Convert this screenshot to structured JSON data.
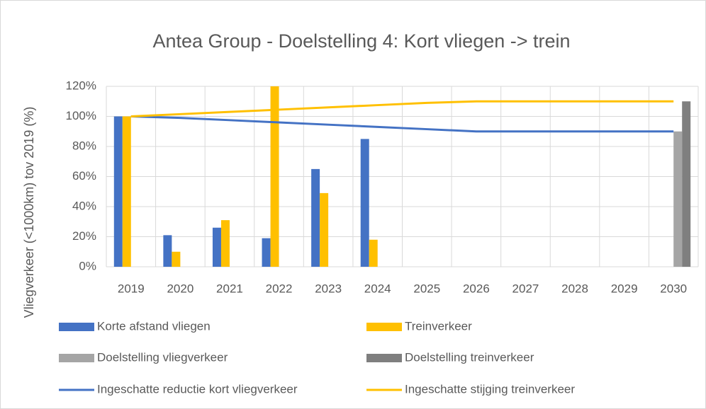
{
  "chart_data": {
    "type": "bar",
    "title": "Antea Group - Doelstelling 4: Kort vliegen -> trein",
    "y_label": "Vliegverkeer (<1000km) tov 2019 (%)",
    "categories": [
      "2019",
      "2020",
      "2021",
      "2022",
      "2023",
      "2024",
      "2025",
      "2026",
      "2027",
      "2028",
      "2029",
      "2030"
    ],
    "series": [
      {
        "name": "Korte afstand vliegen",
        "color": "#4472c4",
        "kind": "bar",
        "values": [
          100,
          21,
          26,
          19,
          65,
          85,
          null,
          null,
          null,
          null,
          null,
          null
        ]
      },
      {
        "name": "Treinverkeer",
        "color": "#ffc000",
        "kind": "bar",
        "values": [
          100,
          10,
          31,
          120,
          49,
          18,
          null,
          null,
          null,
          null,
          null,
          null
        ]
      },
      {
        "name": "Doelstelling vliegverkeer",
        "color": "#a5a5a5",
        "kind": "bar",
        "values": [
          null,
          null,
          null,
          null,
          null,
          null,
          null,
          null,
          null,
          null,
          null,
          90
        ]
      },
      {
        "name": "Doelstelling treinverkeer",
        "color": "#7f7f7f",
        "kind": "bar",
        "values": [
          null,
          null,
          null,
          null,
          null,
          null,
          null,
          null,
          null,
          null,
          null,
          110
        ]
      },
      {
        "name": "Ingeschatte reductie kort vliegverkeer",
        "color": "#4472c4",
        "kind": "line",
        "values": [
          100,
          99,
          97.5,
          96,
          94.5,
          93,
          91.5,
          90,
          90,
          90,
          90,
          90
        ]
      },
      {
        "name": "Ingeschatte stijging treinverkeer",
        "color": "#ffc000",
        "kind": "line",
        "values": [
          100,
          101.5,
          103,
          104.5,
          106,
          107.5,
          109,
          110,
          110,
          110,
          110,
          110
        ]
      }
    ],
    "ylim": [
      0,
      120
    ],
    "yticks": [
      {
        "value": 0,
        "label": "0%"
      },
      {
        "value": 20,
        "label": "20%"
      },
      {
        "value": 40,
        "label": "40%"
      },
      {
        "value": 60,
        "label": "60%"
      },
      {
        "value": 80,
        "label": "80%"
      },
      {
        "value": 100,
        "label": "100%"
      },
      {
        "value": 120,
        "label": "120%"
      }
    ],
    "grid": true,
    "legend": "bottom"
  }
}
